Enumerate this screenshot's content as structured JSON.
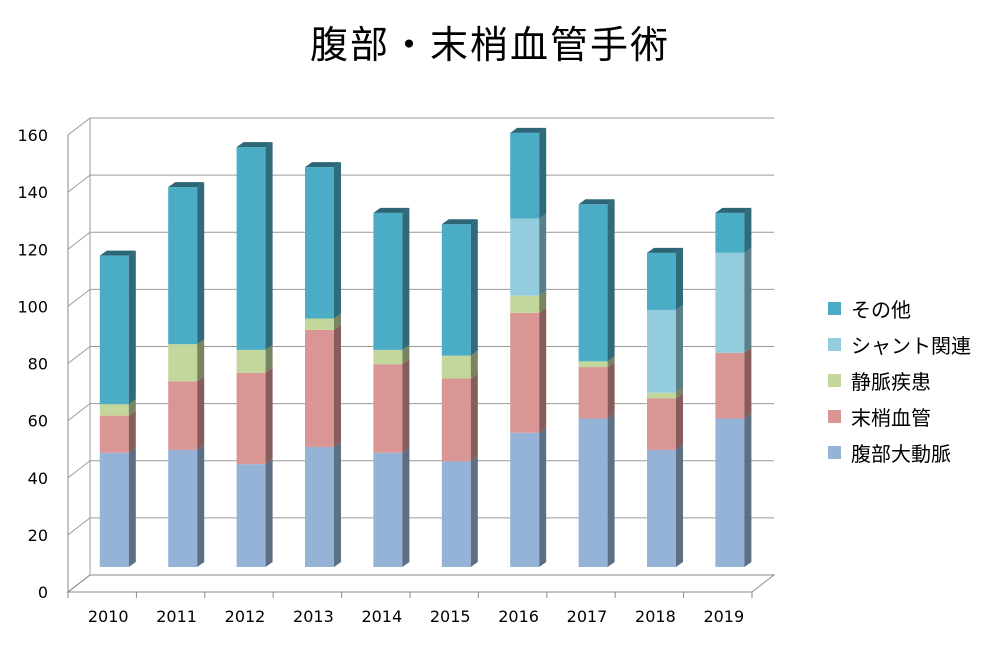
{
  "chart_data": {
    "type": "bar",
    "stacked": true,
    "three_d": true,
    "title": "腹部・末梢血管手術",
    "categories": [
      "2010",
      "2011",
      "2012",
      "2013",
      "2014",
      "2015",
      "2016",
      "2017",
      "2018",
      "2019"
    ],
    "series": [
      {
        "name": "腹部大動脈",
        "color": "#95b3d7",
        "values": [
          40,
          41,
          36,
          42,
          40,
          37,
          47,
          52,
          41,
          52
        ]
      },
      {
        "name": "末梢血管",
        "color": "#d99694",
        "values": [
          13,
          24,
          32,
          41,
          31,
          29,
          42,
          18,
          18,
          23
        ]
      },
      {
        "name": "静脈疾患",
        "color": "#c3d69b",
        "values": [
          4,
          13,
          8,
          4,
          5,
          8,
          6,
          2,
          2,
          0
        ]
      },
      {
        "name": "シャント関連",
        "color": "#93cddd",
        "values": [
          0,
          0,
          0,
          0,
          0,
          0,
          27,
          0,
          29,
          35
        ]
      },
      {
        "name": "その他",
        "color": "#4bacc6",
        "values": [
          52,
          55,
          71,
          53,
          48,
          46,
          30,
          55,
          20,
          14
        ]
      }
    ],
    "ylim": [
      0,
      160
    ],
    "yticks": [
      0,
      20,
      40,
      60,
      80,
      100,
      120,
      140,
      160
    ],
    "grid": true,
    "legend_position": "right",
    "xlabel": "",
    "ylabel": ""
  },
  "legend_order": [
    4,
    3,
    2,
    1,
    0
  ]
}
